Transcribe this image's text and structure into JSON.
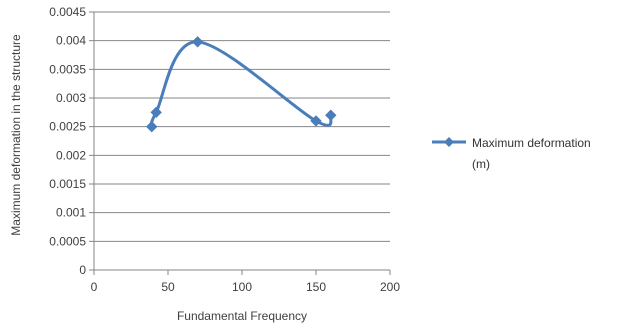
{
  "chart_data": {
    "type": "scatter",
    "title": "",
    "xlabel": "Fundamental Frequency",
    "ylabel": "Maximum deformation in the structure",
    "xlim": [
      0,
      200
    ],
    "ylim": [
      0,
      0.0045
    ],
    "x_ticks": [
      "0",
      "50",
      "100",
      "150",
      "200"
    ],
    "y_ticks": [
      "0",
      "0.0005",
      "0.001",
      "0.0015",
      "0.002",
      "0.0025",
      "0.003",
      "0.0035",
      "0.004",
      "0.0045"
    ],
    "grid": "horizontal",
    "legend_position": "right",
    "smoothed_line": true,
    "series": [
      {
        "name": "Maximum deformation (m)",
        "legend_lines": [
          "Maximum deformation",
          "(m)"
        ],
        "color": "#4a7ebb",
        "marker": "diamond",
        "points": [
          {
            "x": 39,
            "y": 0.0025
          },
          {
            "x": 42,
            "y": 0.00275
          },
          {
            "x": 70,
            "y": 0.00398
          },
          {
            "x": 150,
            "y": 0.0026
          },
          {
            "x": 160,
            "y": 0.0027
          }
        ]
      }
    ]
  }
}
